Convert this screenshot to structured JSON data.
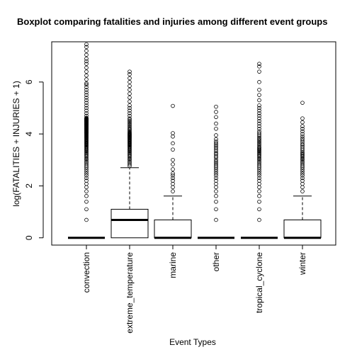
{
  "chart_data": {
    "type": "boxplot",
    "title": "Boxplot comparing fatalities and injuries among different event groups",
    "xlabel": "Event Types",
    "ylabel": "log(FATALITIES + INJURIES + 1)",
    "ylim": [
      -0.28,
      7.55
    ],
    "yticks": [
      0,
      2,
      4,
      6
    ],
    "grid": false,
    "legend": "none",
    "categories": [
      "convection",
      "extreme_temperature",
      "marine",
      "other",
      "tropical_cyclone",
      "winter"
    ],
    "boxes": [
      {
        "name": "convection",
        "q1": 0,
        "median": 0,
        "q3": 0,
        "whisker_low": 0,
        "whisker_high": 0,
        "outliers": [
          0.69,
          1.1,
          1.39,
          1.61,
          1.79,
          1.95,
          2.08,
          2.2,
          2.3,
          2.4,
          2.48,
          2.56,
          2.64,
          2.71,
          2.77,
          2.83,
          2.89,
          2.94,
          3.0,
          3.04,
          3.09,
          3.14,
          3.18,
          3.22,
          3.26,
          3.3,
          3.33,
          3.37,
          3.4,
          3.43,
          3.47,
          3.5,
          3.53,
          3.56,
          3.58,
          3.61,
          3.64,
          3.66,
          3.69,
          3.71,
          3.74,
          3.76,
          3.78,
          3.81,
          3.83,
          3.85,
          3.87,
          3.89,
          3.91,
          3.93,
          3.95,
          3.97,
          3.99,
          4.01,
          4.03,
          4.04,
          4.06,
          4.08,
          4.09,
          4.11,
          4.13,
          4.14,
          4.16,
          4.17,
          4.19,
          4.2,
          4.22,
          4.23,
          4.25,
          4.26,
          4.28,
          4.29,
          4.3,
          4.32,
          4.33,
          4.34,
          4.36,
          4.37,
          4.38,
          4.39,
          4.41,
          4.42,
          4.43,
          4.44,
          4.45,
          4.47,
          4.48,
          4.49,
          4.5,
          4.51,
          4.52,
          4.53,
          4.54,
          4.55,
          4.56,
          4.57,
          4.58,
          4.6,
          4.61,
          4.62,
          4.7,
          4.8,
          4.9,
          5.0,
          5.1,
          5.2,
          5.3,
          5.4,
          5.5,
          5.6,
          5.7,
          5.8,
          5.9,
          5.95,
          6.1,
          6.25,
          6.4,
          6.55,
          6.7,
          6.8,
          6.9,
          7.05,
          7.2,
          7.35,
          7.45
        ]
      },
      {
        "name": "extreme_temperature",
        "q1": 0,
        "median": 0.69,
        "q3": 1.1,
        "whisker_low": 0,
        "whisker_high": 2.7,
        "outliers": [
          2.77,
          2.83,
          2.89,
          2.94,
          3.0,
          3.04,
          3.09,
          3.14,
          3.18,
          3.22,
          3.26,
          3.3,
          3.33,
          3.37,
          3.4,
          3.43,
          3.47,
          3.5,
          3.53,
          3.56,
          3.58,
          3.61,
          3.64,
          3.66,
          3.69,
          3.71,
          3.74,
          3.76,
          3.78,
          3.81,
          3.83,
          3.85,
          3.87,
          3.89,
          3.91,
          3.93,
          3.95,
          3.97,
          3.99,
          4.01,
          4.03,
          4.06,
          4.09,
          4.13,
          4.17,
          4.2,
          4.25,
          4.3,
          4.35,
          4.4,
          4.45,
          4.5,
          4.55,
          4.6,
          4.7,
          4.8,
          4.9,
          5.0,
          5.1,
          5.25,
          5.4,
          5.55,
          5.7,
          5.85,
          6.0,
          6.15,
          6.3,
          6.4
        ]
      },
      {
        "name": "marine",
        "q1": 0,
        "median": 0,
        "q3": 0.69,
        "whisker_low": 0,
        "whisker_high": 1.61,
        "outliers": [
          1.79,
          1.95,
          2.08,
          2.2,
          2.3,
          2.4,
          2.48,
          2.64,
          2.83,
          3.0,
          3.4,
          3.64,
          3.9,
          4.03,
          5.08
        ]
      },
      {
        "name": "other",
        "q1": 0,
        "median": 0,
        "q3": 0,
        "whisker_low": 0,
        "whisker_high": 0,
        "outliers": [
          0.69,
          1.1,
          1.39,
          1.61,
          1.79,
          1.95,
          2.08,
          2.2,
          2.3,
          2.4,
          2.48,
          2.56,
          2.64,
          2.71,
          2.77,
          2.83,
          2.89,
          2.94,
          3.0,
          3.09,
          3.14,
          3.22,
          3.26,
          3.33,
          3.4,
          3.47,
          3.53,
          3.58,
          3.64,
          3.71,
          3.8,
          3.95,
          4.2,
          4.4,
          4.65,
          4.85,
          5.05
        ]
      },
      {
        "name": "tropical_cyclone",
        "q1": 0,
        "median": 0,
        "q3": 0,
        "whisker_low": 0,
        "whisker_high": 0,
        "outliers": [
          0.69,
          1.1,
          1.39,
          1.61,
          1.79,
          1.95,
          2.08,
          2.2,
          2.3,
          2.4,
          2.48,
          2.56,
          2.64,
          2.71,
          2.77,
          2.83,
          2.89,
          2.94,
          3.0,
          3.04,
          3.09,
          3.14,
          3.18,
          3.22,
          3.26,
          3.3,
          3.33,
          3.37,
          3.4,
          3.43,
          3.47,
          3.5,
          3.56,
          3.61,
          3.66,
          3.71,
          3.76,
          3.81,
          3.85,
          3.91,
          3.97,
          4.03,
          4.1,
          4.2,
          4.3,
          4.4,
          4.5,
          4.6,
          4.7,
          4.8,
          4.9,
          5.0,
          5.1,
          5.3,
          5.5,
          5.7,
          6.0,
          6.4,
          6.6,
          6.7
        ]
      },
      {
        "name": "winter",
        "q1": 0,
        "median": 0,
        "q3": 0.69,
        "whisker_low": 0,
        "whisker_high": 1.61,
        "outliers": [
          1.79,
          1.95,
          2.08,
          2.2,
          2.3,
          2.4,
          2.48,
          2.56,
          2.64,
          2.71,
          2.77,
          2.83,
          2.89,
          2.94,
          3.0,
          3.04,
          3.09,
          3.14,
          3.18,
          3.22,
          3.26,
          3.3,
          3.37,
          3.43,
          3.5,
          3.56,
          3.61,
          3.69,
          3.76,
          3.83,
          3.91,
          4.0,
          4.1,
          4.2,
          4.3,
          4.45,
          4.6,
          5.2
        ]
      }
    ]
  }
}
